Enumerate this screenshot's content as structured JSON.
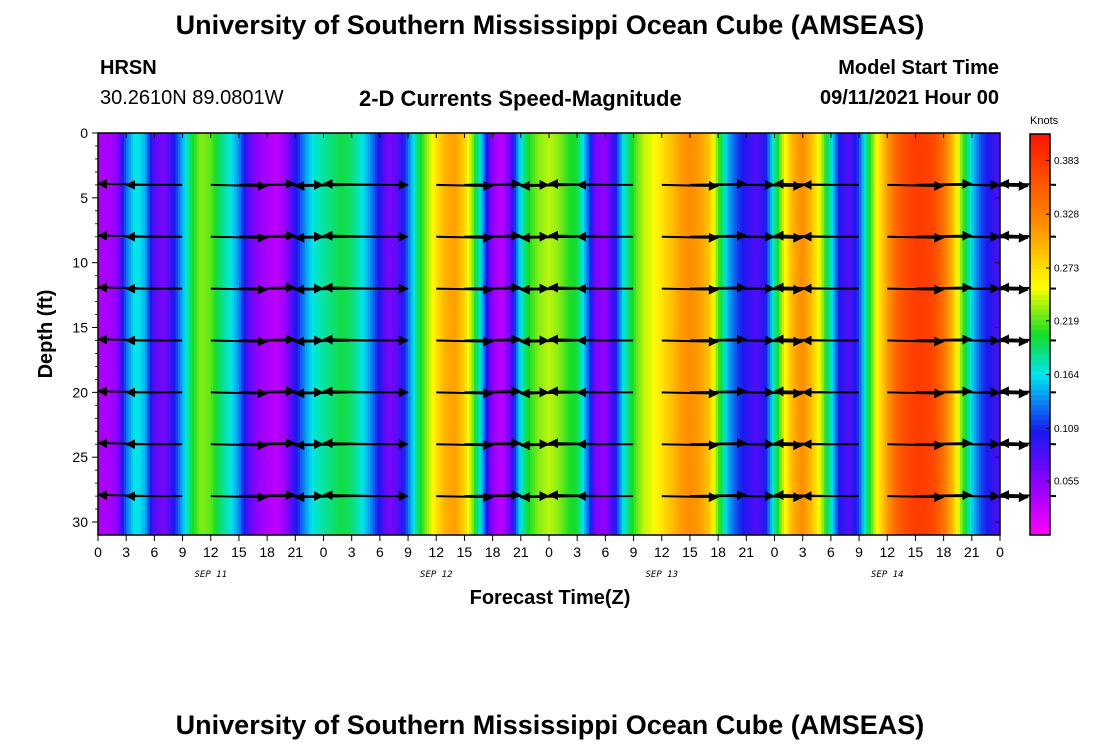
{
  "page": {
    "title_top": "University of Southern Mississippi Ocean Cube (AMSEAS)",
    "title_bottom": "University of Southern Mississippi Ocean Cube (AMSEAS)",
    "station": "HRSN",
    "coords": "30.2610N  89.0801W",
    "plot_title": "2-D Currents Speed-Magnitude",
    "model_label": "Model Start Time",
    "model_time": "09/11/2021 Hour 00"
  },
  "chart_data": {
    "type": "heatmap",
    "title": "2-D Currents Speed-Magnitude",
    "xlabel": "Forecast Time(Z)",
    "ylabel": "Depth (ft)",
    "x_range_hours": [
      0,
      96
    ],
    "ylim": [
      0,
      31
    ],
    "x_tick_labels": [
      "0",
      "3",
      "6",
      "9",
      "12",
      "15",
      "18",
      "21",
      "0",
      "3",
      "6",
      "9",
      "12",
      "15",
      "18",
      "21",
      "0",
      "3",
      "6",
      "9",
      "12",
      "15",
      "18",
      "21",
      "0",
      "3",
      "6",
      "9",
      "12",
      "15",
      "18",
      "21",
      "0"
    ],
    "day_labels": [
      {
        "label": "SEP 11",
        "hour": 12
      },
      {
        "label": "SEP 12",
        "hour": 36
      },
      {
        "label": "SEP 13",
        "hour": 60
      },
      {
        "label": "SEP 14",
        "hour": 84
      }
    ],
    "y_ticks": [
      0,
      5,
      10,
      15,
      20,
      25,
      30
    ],
    "colorbar": {
      "unit": "Knots",
      "vmin": 0.0,
      "vmax": 0.41,
      "ticks": [
        "0.383",
        "0.328",
        "0.273",
        "0.219",
        "0.164",
        "0.109",
        "0.055"
      ],
      "tick_values": [
        0.383,
        0.328,
        0.273,
        0.219,
        0.164,
        0.109,
        0.055
      ]
    },
    "speed_profile": {
      "hours": [
        0,
        1,
        2,
        3,
        4,
        5,
        6,
        7,
        8,
        9,
        10,
        11,
        12,
        13,
        14,
        15,
        16,
        17,
        18,
        19,
        20,
        21,
        22,
        23,
        24,
        25,
        26,
        27,
        28,
        29,
        30,
        31,
        32,
        33,
        34,
        35,
        36,
        37,
        38,
        39,
        40,
        41,
        42,
        43,
        44,
        45,
        46,
        47,
        48,
        49,
        50,
        51,
        52,
        53,
        54,
        55,
        56,
        57,
        58,
        59,
        60,
        61,
        62,
        63,
        64,
        65,
        66,
        67,
        68,
        69,
        70,
        71,
        72,
        73,
        74,
        75,
        76,
        77,
        78,
        79,
        80,
        81,
        82,
        83,
        84,
        85,
        86,
        87,
        88,
        89,
        90,
        91,
        92,
        93,
        94,
        95,
        96
      ],
      "knots": [
        0.04,
        0.04,
        0.05,
        0.13,
        0.17,
        0.15,
        0.08,
        0.06,
        0.1,
        0.15,
        0.2,
        0.23,
        0.22,
        0.19,
        0.17,
        0.14,
        0.08,
        0.05,
        0.04,
        0.03,
        0.05,
        0.1,
        0.14,
        0.17,
        0.18,
        0.19,
        0.2,
        0.19,
        0.17,
        0.14,
        0.1,
        0.06,
        0.08,
        0.13,
        0.19,
        0.23,
        0.27,
        0.3,
        0.31,
        0.28,
        0.22,
        0.14,
        0.05,
        0.03,
        0.08,
        0.17,
        0.21,
        0.23,
        0.24,
        0.23,
        0.21,
        0.2,
        0.14,
        0.06,
        0.05,
        0.1,
        0.17,
        0.21,
        0.24,
        0.25,
        0.27,
        0.29,
        0.31,
        0.32,
        0.31,
        0.29,
        0.22,
        0.15,
        0.12,
        0.1,
        0.08,
        0.1,
        0.18,
        0.25,
        0.3,
        0.32,
        0.29,
        0.24,
        0.17,
        0.1,
        0.08,
        0.12,
        0.2,
        0.26,
        0.31,
        0.35,
        0.37,
        0.38,
        0.38,
        0.37,
        0.34,
        0.29,
        0.22,
        0.16,
        0.12,
        0.1,
        0.08
      ]
    },
    "vector_rows_depth_ft": [
      4,
      8,
      12,
      16,
      20,
      24,
      28
    ],
    "vector_columns_hour": [
      0,
      3,
      12,
      15,
      18,
      21,
      24,
      27,
      36,
      39,
      42,
      45,
      48,
      51,
      60,
      63,
      66,
      69,
      72,
      75,
      84,
      87,
      90,
      93,
      96
    ]
  },
  "colors": {
    "frame": "#000000",
    "arrow": "#000000"
  }
}
